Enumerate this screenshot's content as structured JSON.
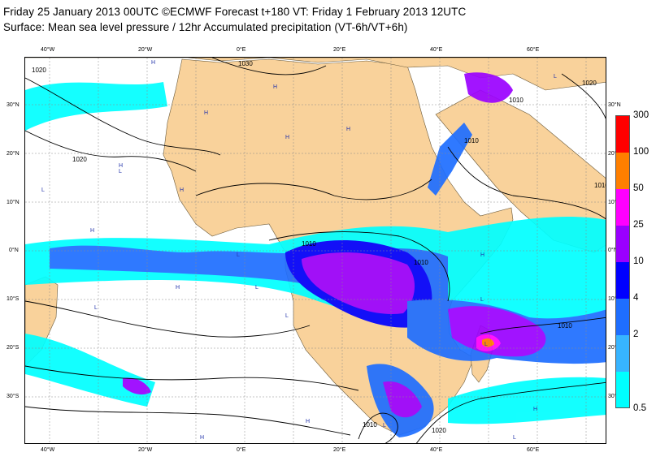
{
  "header": {
    "line1": "Friday 25 January 2013 00UTC ©ECMWF Forecast t+180 VT: Friday 1 February 2013 12UTC",
    "line2": "Surface: Mean sea level pressure / 12hr Accumulated precipitation (VT-6h/VT+6h)"
  },
  "map": {
    "lon_labels": [
      "40°W",
      "20°W",
      "0°E",
      "20°E",
      "40°E",
      "60°E"
    ],
    "lat_labels": [
      "30°N",
      "20°N",
      "10°N",
      "0°N",
      "10°S",
      "20°S",
      "30°S"
    ],
    "isobar_labels": [
      "1020",
      "1030",
      "1020",
      "1010",
      "1010",
      "1020",
      "1010",
      "1010",
      "1010",
      "1010",
      "1020",
      "1010"
    ],
    "high_marker": "H",
    "low_marker": "L",
    "colors": {
      "land": "#f9d29b",
      "ocean": "#ffffff",
      "grid": "#8a8a8a",
      "isobar": "#000000"
    }
  },
  "legend": {
    "labels": [
      "300",
      "100",
      "50",
      "25",
      "10",
      "4",
      "2",
      "0.5"
    ],
    "bands": [
      {
        "color": "#ff0000"
      },
      {
        "color": "#ff7f00"
      },
      {
        "color": "#ff00ff"
      },
      {
        "color": "#9a00ff"
      },
      {
        "color": "#0000ff"
      },
      {
        "color": "#1e6eff"
      },
      {
        "color": "#37b4ff"
      },
      {
        "color": "#00ffff"
      }
    ]
  }
}
